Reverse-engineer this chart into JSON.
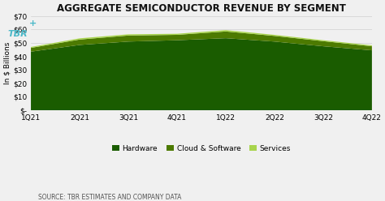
{
  "title": "AGGREGATE SEMICONDUCTOR REVENUE BY SEGMENT",
  "ylabel": "In $ Billions",
  "categories": [
    "1Q21",
    "2Q21",
    "3Q21",
    "4Q21",
    "1Q22",
    "2Q22",
    "3Q22",
    "4Q22"
  ],
  "hardware": [
    43.5,
    48.5,
    51.0,
    52.0,
    53.5,
    51.0,
    47.5,
    44.5
  ],
  "cloud_software": [
    2.8,
    4.0,
    4.5,
    4.0,
    5.0,
    4.2,
    3.8,
    3.0
  ],
  "services": [
    0.7,
    0.9,
    0.9,
    0.8,
    1.0,
    0.8,
    0.7,
    0.7
  ],
  "color_hardware": "#1a5c00",
  "color_cloud": "#4c7a00",
  "color_services": "#a8d44d",
  "background_color": "#f0f0f0",
  "plot_bg_color": "#f0f0f0",
  "grid_color": "#d0d0d0",
  "ylim": [
    0,
    70
  ],
  "yticks": [
    0,
    10,
    20,
    30,
    40,
    50,
    60,
    70
  ],
  "source_text": "SOURCE: TBR ESTIMATES AND COMPANY DATA",
  "legend_labels": [
    "Hardware",
    "Cloud & Software",
    "Services"
  ],
  "title_fontsize": 8.5,
  "label_fontsize": 6.5,
  "tick_fontsize": 6.5,
  "source_fontsize": 5.5,
  "tbr_color": "#4ab8c8"
}
